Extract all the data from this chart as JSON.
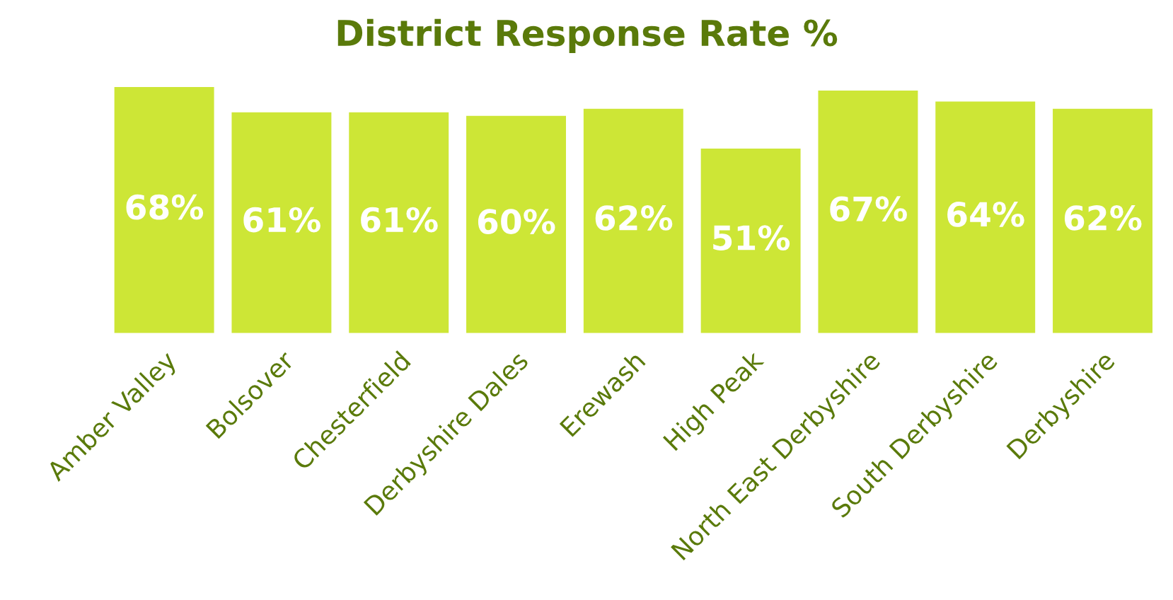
{
  "chart_data": {
    "type": "bar",
    "title": "District Response Rate %",
    "categories": [
      "Amber Valley",
      "Bolsover",
      "Chesterfield",
      "Derbyshire Dales",
      "Erewash",
      "High Peak",
      "North East Derbyshire",
      "South Derbyshire",
      "Derbyshire"
    ],
    "values": [
      68,
      61,
      61,
      60,
      62,
      51,
      67,
      64,
      62
    ],
    "value_labels": [
      "68%",
      "61%",
      "61%",
      "60%",
      "62%",
      "51%",
      "67%",
      "64%",
      "62%"
    ],
    "color": "#cde636",
    "grid": false,
    "legend": false
  }
}
